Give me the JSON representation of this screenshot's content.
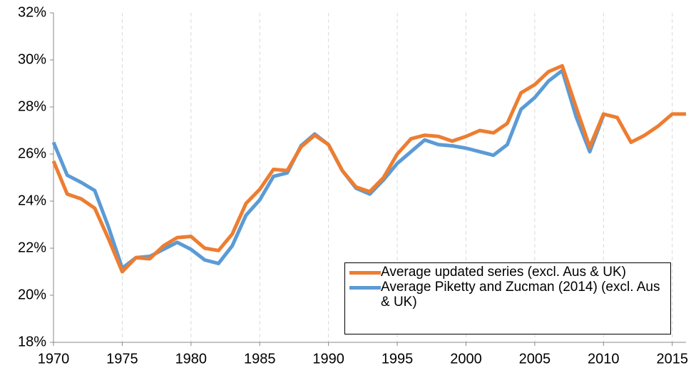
{
  "chart_data": {
    "type": "line",
    "x": [
      1970,
      1971,
      1972,
      1973,
      1974,
      1975,
      1976,
      1977,
      1978,
      1979,
      1980,
      1981,
      1982,
      1983,
      1984,
      1985,
      1986,
      1987,
      1988,
      1989,
      1990,
      1991,
      1992,
      1993,
      1994,
      1995,
      1996,
      1997,
      1998,
      1999,
      2000,
      2001,
      2002,
      2003,
      2004,
      2005,
      2006,
      2007,
      2008,
      2009,
      2010,
      2011,
      2012,
      2013,
      2014,
      2015,
      2016
    ],
    "series": [
      {
        "name": "Average updated series (excl. Aus & UK)",
        "color": "#ed7d31",
        "values": [
          25.7,
          24.3,
          24.1,
          23.7,
          22.4,
          21.0,
          21.6,
          21.55,
          22.1,
          22.45,
          22.5,
          22.0,
          21.9,
          22.6,
          23.9,
          24.5,
          25.35,
          25.3,
          26.3,
          26.8,
          26.4,
          25.3,
          24.6,
          24.4,
          25.0,
          26.0,
          26.65,
          26.8,
          26.75,
          26.55,
          26.75,
          27.0,
          26.9,
          27.3,
          28.6,
          28.95,
          29.5,
          29.75,
          28.0,
          26.3,
          27.7,
          27.55,
          26.5,
          26.8,
          27.2,
          27.7,
          27.7
        ]
      },
      {
        "name": "Average Piketty and Zucman (2014) (excl. Aus & UK)",
        "color": "#5b9bd5",
        "values": [
          26.5,
          25.1,
          24.8,
          24.45,
          22.9,
          21.15,
          21.6,
          21.65,
          21.95,
          22.25,
          21.95,
          21.5,
          21.35,
          22.1,
          23.4,
          24.05,
          25.05,
          25.2,
          26.35,
          26.85,
          26.4,
          25.3,
          24.55,
          24.3,
          24.9,
          25.6,
          26.1,
          26.6,
          26.4,
          26.35,
          26.25,
          26.1,
          25.95,
          26.4,
          27.9,
          28.4,
          29.1,
          29.55,
          27.6,
          26.1,
          27.65,
          null,
          null,
          null,
          null,
          null,
          null
        ]
      }
    ],
    "xlim": [
      1970,
      2016
    ],
    "xticks": [
      1970,
      1975,
      1980,
      1985,
      1990,
      1995,
      2000,
      2005,
      2010,
      2015
    ],
    "ylim": [
      18,
      32
    ],
    "yticks": [
      {
        "value": 18,
        "label": "18%"
      },
      {
        "value": 20,
        "label": "20%"
      },
      {
        "value": 22,
        "label": "22%"
      },
      {
        "value": 24,
        "label": "24%"
      },
      {
        "value": 26,
        "label": "26%"
      },
      {
        "value": 28,
        "label": "28%"
      },
      {
        "value": 30,
        "label": "30%"
      },
      {
        "value": 32,
        "label": "32%"
      }
    ],
    "grid": "x",
    "legend": "lower right"
  }
}
